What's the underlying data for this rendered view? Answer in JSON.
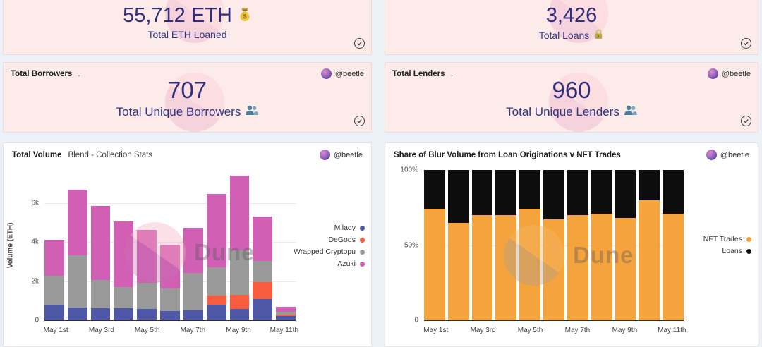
{
  "colors": {
    "page_bg": "#ecf0f7",
    "stat_card_bg": "#fcebe8",
    "chart_card_bg": "#ffffff",
    "stat_value_text": "#312e7d",
    "stat_label_text": "#313589",
    "milady": "#4f57a7",
    "degods": "#f65c3d",
    "wrapped_cryptopunks": "#9a9a9a",
    "azuki": "#d15fb4",
    "nft_trades": "#f5a33c",
    "loans": "#0d0d0d"
  },
  "stat_cards": [
    {
      "value": "55,712 ETH",
      "label": "Total ETH Loaned",
      "icon": "money-bag"
    },
    {
      "value": "3,426",
      "label": "Total Loans",
      "icon": "lock"
    },
    {
      "title": "Total Borrowers",
      "title_dot": ".",
      "author": "@beetle",
      "value": "707",
      "label": "Total Unique Borrowers",
      "icon": "busts"
    },
    {
      "title": "Total Lenders",
      "title_dot": ".",
      "author": "@beetle",
      "value": "960",
      "label": "Total Unique Lenders",
      "icon": "busts"
    }
  ],
  "watermark_text": "Dune",
  "chart_data": [
    {
      "type": "bar",
      "stacked": true,
      "title": "Total Volume",
      "subtitle": "Blend - Collection Stats",
      "author": "@beetle",
      "xlabel": "",
      "ylabel": "Volume (ETH)",
      "ylim": [
        0,
        7700
      ],
      "grid": true,
      "legend_position": "right",
      "x": [
        "May 1st",
        "May 2nd",
        "May 3rd",
        "May 4th",
        "May 5th",
        "May 6th",
        "May 7th",
        "May 8th",
        "May 9th",
        "May 10th",
        "May 11th"
      ],
      "x_label_step": 2,
      "yticks": [
        {
          "v": 6000,
          "label": "6k",
          "grid": true
        },
        {
          "v": 4000,
          "label": "4k",
          "grid": true
        },
        {
          "v": 2000,
          "label": "2k",
          "grid": true
        },
        {
          "v": 0,
          "label": "0",
          "grid": false
        }
      ],
      "series": [
        {
          "name": "Milady",
          "color": "#4f57a7",
          "values": [
            810,
            650,
            620,
            620,
            580,
            470,
            510,
            800,
            590,
            1080,
            200
          ]
        },
        {
          "name": "DeGods",
          "color": "#f65c3d",
          "values": [
            0,
            0,
            0,
            0,
            0,
            0,
            0,
            450,
            730,
            890,
            95
          ]
        },
        {
          "name": "Wrapped Cryptopu",
          "color": "#9a9a9a",
          "values": [
            1470,
            2670,
            1440,
            1085,
            1340,
            1140,
            1930,
            1480,
            2270,
            1060,
            140
          ]
        },
        {
          "name": "Azuki",
          "color": "#d15fb4",
          "values": [
            1840,
            3380,
            3810,
            3375,
            2700,
            2270,
            2280,
            3730,
            3840,
            2270,
            270
          ]
        }
      ]
    },
    {
      "type": "bar",
      "stacked": true,
      "percent": true,
      "title": "Share of Blur Volume from Loan Originations v NFT Trades",
      "subtitle": "",
      "author": "@beetle",
      "xlabel": "",
      "ylabel": "",
      "ylim": [
        0,
        100
      ],
      "grid": true,
      "legend_position": "right",
      "x": [
        "May 1st",
        "May 2nd",
        "May 3rd",
        "May 4th",
        "May 5th",
        "May 6th",
        "May 7th",
        "May 8th",
        "May 9th",
        "May 10th",
        "May 11th"
      ],
      "x_label_step": 2,
      "yticks": [
        {
          "v": 100,
          "label": "100%",
          "grid": false
        },
        {
          "v": 50,
          "label": "50%",
          "grid": true
        },
        {
          "v": 0,
          "label": "0",
          "grid": false
        }
      ],
      "series": [
        {
          "name": "NFT Trades",
          "color": "#f5a33c",
          "values": [
            74,
            65,
            70,
            70,
            74,
            67,
            70,
            71,
            68,
            80,
            71
          ]
        },
        {
          "name": "Loans",
          "color": "#0d0d0d",
          "values": [
            26,
            35,
            30,
            30,
            26,
            33,
            30,
            29,
            32,
            20,
            29
          ]
        }
      ]
    }
  ]
}
